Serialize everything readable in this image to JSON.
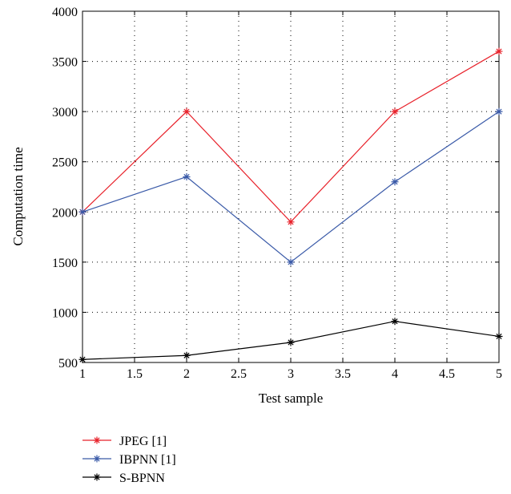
{
  "chart_data": {
    "type": "line",
    "title": "",
    "xlabel": "Test sample",
    "ylabel": "Computation time",
    "xlim": [
      1,
      5
    ],
    "ylim": [
      500,
      4000
    ],
    "xticks": [
      1,
      1.5,
      2,
      2.5,
      3,
      3.5,
      4,
      4.5,
      5
    ],
    "xtick_labels": [
      "1",
      "1.5",
      "2",
      "2.5",
      "3",
      "3.5",
      "4",
      "4.5",
      "5"
    ],
    "yticks": [
      500,
      1000,
      1500,
      2000,
      2500,
      3000,
      3500,
      4000
    ],
    "ytick_labels": [
      "500",
      "1000",
      "1500",
      "2000",
      "2500",
      "3000",
      "3500",
      "4000"
    ],
    "grid": true,
    "legend_position": "below",
    "x": [
      1,
      2,
      3,
      4,
      5
    ],
    "series": [
      {
        "name": "JPEG [1]",
        "color": "#e8212a",
        "values": [
          2000,
          3000,
          1900,
          3000,
          3600
        ]
      },
      {
        "name": "IBPNN [1]",
        "color": "#3a5aa8",
        "values": [
          2000,
          2350,
          1500,
          2300,
          3000
        ]
      },
      {
        "name": "S-BPNN",
        "color": "#000000",
        "values": [
          530,
          570,
          700,
          910,
          760
        ]
      }
    ]
  }
}
